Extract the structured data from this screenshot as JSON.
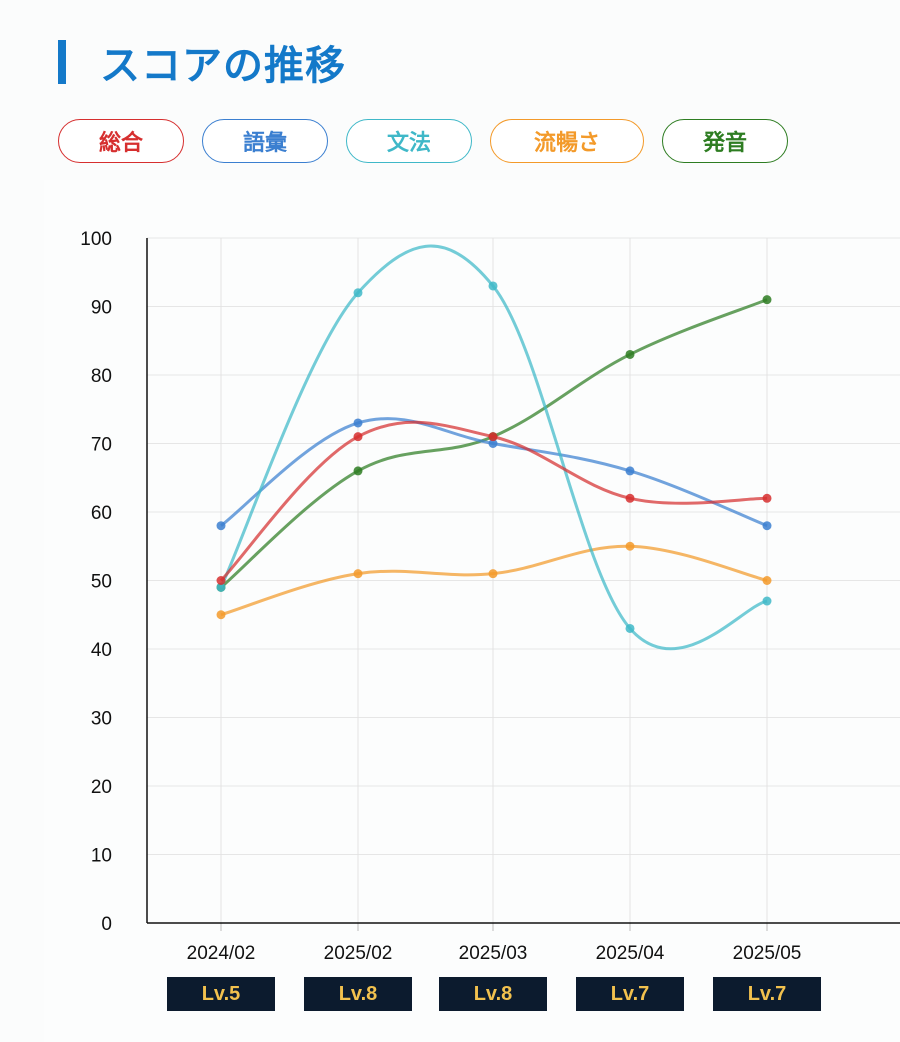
{
  "header": {
    "title": "スコアの推移"
  },
  "legend": [
    {
      "label": "総合",
      "color": "#d62f2f"
    },
    {
      "label": "語彙",
      "color": "#3b7fd0"
    },
    {
      "label": "文法",
      "color": "#3fb8c8"
    },
    {
      "label": "流暢さ",
      "color": "#f39a2a"
    },
    {
      "label": "発音",
      "color": "#2e7d22"
    }
  ],
  "chart_data": {
    "type": "line",
    "categories": [
      "2024/02",
      "2025/02",
      "2025/03",
      "2025/04",
      "2025/05"
    ],
    "ylim": [
      0,
      100
    ],
    "yticks": [
      0,
      10,
      20,
      30,
      40,
      50,
      60,
      70,
      80,
      90,
      100
    ],
    "grid": true,
    "series": [
      {
        "name": "総合",
        "color": "#d62f2f",
        "values": [
          50,
          71,
          71,
          62,
          62
        ]
      },
      {
        "name": "語彙",
        "color": "#3b7fd0",
        "values": [
          58,
          73,
          70,
          66,
          58
        ]
      },
      {
        "name": "文法",
        "color": "#3fb8c8",
        "values": [
          49,
          92,
          93,
          43,
          47
        ]
      },
      {
        "name": "流暢さ",
        "color": "#f39a2a",
        "values": [
          45,
          51,
          51,
          55,
          50
        ]
      },
      {
        "name": "発音",
        "color": "#2e7d22",
        "values": [
          49,
          66,
          71,
          83,
          91
        ]
      }
    ],
    "levels": [
      "Lv.5",
      "Lv.8",
      "Lv.8",
      "Lv.7",
      "Lv.7"
    ]
  }
}
